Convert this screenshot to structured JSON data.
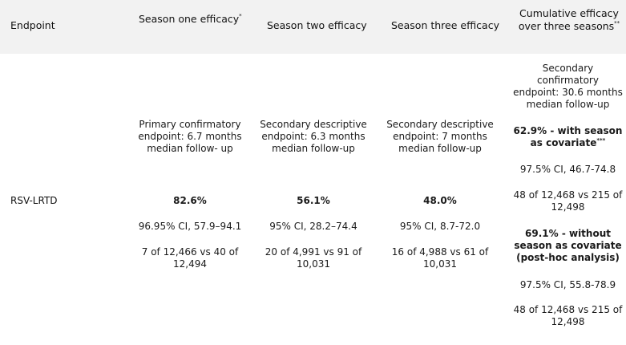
{
  "header": {
    "col_endpoint": "Endpoint",
    "col_season_one": "Season one efficacy",
    "col_season_one_mark": "*",
    "col_season_two": "Season two efficacy",
    "col_season_three": "Season three efficacy",
    "col_cumulative_line1": "Cumulative efficacy",
    "col_cumulative_line2": "over three seasons",
    "col_cumulative_mark": "**"
  },
  "row": {
    "endpoint": "RSV-LRTD",
    "season_one": {
      "description_line1": "Primary confirmatory",
      "description_line2": "endpoint: 6.7 months",
      "description_line3": "median follow- up",
      "efficacy": "82.6%",
      "ci": "96.95% CI, 57.9–94.1",
      "cases_line1": "7 of 12,466 vs 40 of",
      "cases_line2": "12,494"
    },
    "season_two": {
      "description_line1": "Secondary descriptive",
      "description_line2": "endpoint: 6.3 months",
      "description_line3": "median follow-up",
      "efficacy": "56.1%",
      "ci": "95% CI, 28.2–74.4",
      "cases_line1": "20 of 4,991 vs 91 of",
      "cases_line2": "10,031"
    },
    "season_three": {
      "description_line1": "Secondary descriptive",
      "description_line2": "endpoint: 7 months",
      "description_line3": "median follow-up",
      "efficacy": "48.0%",
      "ci": "95% CI, 8.7-72.0",
      "cases_line1": "16 of 4,988 vs 61 of",
      "cases_line2": "10,031"
    },
    "cumulative": {
      "description_line1": "Secondary",
      "description_line2": "confirmatory",
      "description_line3": "endpoint: 30.6 months",
      "description_line4": "median follow-up",
      "with_cov_line1": "62.9% - with season",
      "with_cov_line2": "as covariate",
      "with_cov_mark": "***",
      "with_cov_ci": "97.5% CI, 46.7-74.8",
      "with_cov_cases_line1": "48 of 12,468 vs 215 of",
      "with_cov_cases_line2": "12,498",
      "without_cov_line1": "69.1% - without",
      "without_cov_line2": "season as covariate",
      "without_cov_line3": "(post-hoc analysis)",
      "without_cov_ci": "97.5% CI, 55.8-78.9",
      "without_cov_cases_line1": "48 of 12,468 vs 215 of",
      "without_cov_cases_line2": "12,498"
    }
  }
}
